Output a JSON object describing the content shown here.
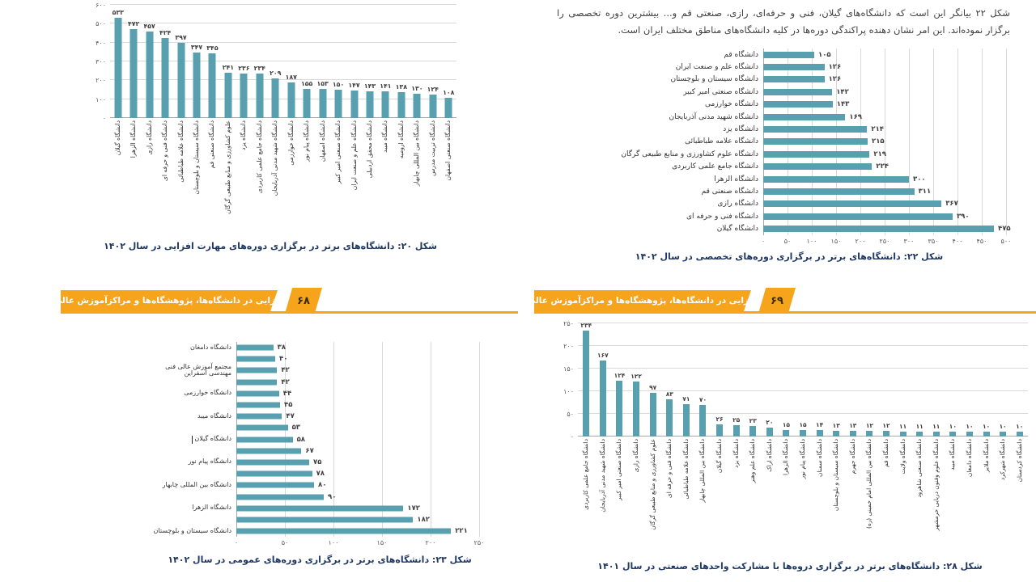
{
  "colors": {
    "bar": "#58a0af",
    "banner": "#f7a41d",
    "caption": "#1f3864",
    "grid": "#d9d9d9",
    "axis": "#a6a6a6",
    "text": "#404040"
  },
  "paragraph": {
    "text": "شکل ۲۲ بیانگر این است که دانشگاه‌های گیلان، فنی و حرفه‌ای، رازی، صنعتی قم و... بیشترین دوره تخصصی را برگزار نموده‌اند. این امر نشان دهنده پراکندگی دوره‌ها در کلیه دانشگاه‌های مناطق مختلف ایران است."
  },
  "banners": {
    "left": {
      "label": "مهارت‌افزایی در دانشگاه‌ها، پژوهشگاه‌ها و مراکزآموزش عالی کشور",
      "page_number": "۶۸"
    },
    "right": {
      "label": "مهارت‌افزایی در دانشگاه‌ها، پژوهشگاه‌ها و مراکزآموزش عالی کشور",
      "page_number": "۶۹"
    }
  },
  "chart_data": [
    {
      "id": "figure-20",
      "type": "bar",
      "orientation": "vertical",
      "title_caption": "شکل ۲۰: دانشگاه‌های برتر در برگزاری دوره‌های مهارت افزایی در سال ۱۴۰۲",
      "categories": [
        "دانشگاه گیلان",
        "دانشگاه الزهرا",
        "دانشگاه رازی",
        "دانشگاه فنی و حرفه ای",
        "دانشگاه علامه طباطبائی",
        "دانشگاه سیستان و بلوچستان",
        "دانشگاه صنعتی قم",
        "علوم کشاورزی و منابع طبیعی گرگان",
        "دانشگاه یزد",
        "دانشگاه جامع علمی کاربردی",
        "دانشگاه شهید مدنی آذربایجان",
        "دانشگاه خوارزمی",
        "دانشگاه پیام نور",
        "دانشگاه اصفهان",
        "دانشگاه صنعتی امیر کبیر",
        "دانشگاه علم و صنعت ایران",
        "دانشگاه محقق اردبیلی",
        "دانشگاه میبد",
        "دانشگاه ارومیه",
        "دانشگاه بین المللی چابهار",
        "دانشگاه تربیت مدرس",
        "دانشگاه صنعتی اصفهان"
      ],
      "values": [
        533,
        472,
        457,
        424,
        397,
        347,
        345,
        241,
        236,
        234,
        209,
        187,
        155,
        153,
        150,
        147,
        143,
        141,
        138,
        130,
        124,
        108
      ],
      "ylim": [
        0,
        600
      ],
      "tick_step": 100,
      "grid": true
    },
    {
      "id": "figure-22",
      "type": "bar",
      "orientation": "horizontal",
      "title_caption": "شکل ۲۲: دانشگاه‌های برتر در برگزاری دوره‌های تخصصی در سال ۱۴۰۲",
      "categories": [
        "دانشگاه قم",
        "دانشگاه علم و صنعت ایران",
        "دانشگاه سیستان و بلوچستان",
        "دانشگاه صنعتی امیر کبیر",
        "دانشگاه خوارزمی",
        "دانشگاه شهید مدنی آذربایجان",
        "دانشگاه یزد",
        "دانشگاه علامه طباطبائی",
        "دانشگاه علوم کشاورزی و منابع طبیعی گرگان",
        "دانشگاه جامع علمی کاربردی",
        "دانشگاه الزهرا",
        "دانشگاه صنعتی قم",
        "دانشگاه رازی",
        "دانشگاه فنی و حرفه ای",
        "دانشگاه گیلان"
      ],
      "values": [
        105,
        126,
        126,
        142,
        143,
        169,
        214,
        215,
        219,
        224,
        300,
        311,
        367,
        390,
        475
      ],
      "xlim": [
        0,
        500
      ],
      "tick_step": 50,
      "grid": true
    },
    {
      "id": "figure-23",
      "type": "bar",
      "orientation": "horizontal",
      "title_caption": "شکل ۲۳: دانشگاه‌های برتر در برگزاری دوره‌های عمومی در سال ۱۴۰۲",
      "categories": [
        "دانشگاه دامغان",
        "",
        "مجتمع آموزش عالی فنی مهندسی اسفراین",
        "",
        "دانشگاه خوارزمی",
        "",
        "دانشگاه میبد",
        "",
        "دانشگاه گیلان",
        "",
        "دانشگاه پیام نور",
        "",
        "دانشگاه بین المللی چابهار",
        "",
        "دانشگاه الزهرا",
        "",
        "دانشگاه سیستان و بلوچستان"
      ],
      "values": [
        38,
        40,
        42,
        42,
        44,
        45,
        47,
        53,
        58,
        67,
        75,
        78,
        80,
        90,
        172,
        182,
        221
      ],
      "xlim": [
        0,
        250
      ],
      "tick_step": 50,
      "grid": true,
      "text_cursor_after_category": "دانشگاه گیلان"
    },
    {
      "id": "figure-28",
      "type": "bar",
      "orientation": "vertical",
      "title_caption": "شکل ۲۸: دانشگاه‌های برتر در برگزاری دروه‌ها با مشارکت واحدهای صنعتی در سال ۱۴۰۱",
      "categories": [
        "دانشگاه جامع علمی کاربردی",
        "دانشگاه شهید مدنی آذربایجان",
        "دانشگاه صنعتی امیر کبیر",
        "دانشگاه رازی",
        "علوم کشاورزی و منابع طبیعی گرگان",
        "دانشگاه فنی و حرفه ای",
        "دانشگاه علامه طباطبائی",
        "دانشگاه بین المللی چابهار",
        "دانشگاه گیلان",
        "دانشگاه یزد",
        "دانشگاه علم وهنر",
        "دانشگاه اراک",
        "دانشگاه الزهرا",
        "دانشگاه پیام نور",
        "دانشگاه سمنان",
        "دانشگاه سیستان و بلوچستان",
        "دانشگاه جهرم",
        "دانشگاه بین المللی امام خمینی (ره)",
        "دانشگاه قم",
        "دانشگاه ولایت",
        "دانشگاه صنعتی شاهرود",
        "دانشگاه علوم وفنون دریایی خرمشهر",
        "دانشگاه میبد",
        "دانشگاه دامغان",
        "دانشگاه ملایر",
        "دانشگاه شهرکرد",
        "دانشگاه کردستان"
      ],
      "values": [
        234,
        167,
        124,
        122,
        97,
        83,
        71,
        70,
        26,
        25,
        23,
        20,
        15,
        15,
        14,
        13,
        13,
        12,
        12,
        11,
        11,
        11,
        10,
        10,
        10,
        10,
        10
      ],
      "ylim": [
        0,
        250
      ],
      "tick_step": 50,
      "grid": true
    }
  ]
}
